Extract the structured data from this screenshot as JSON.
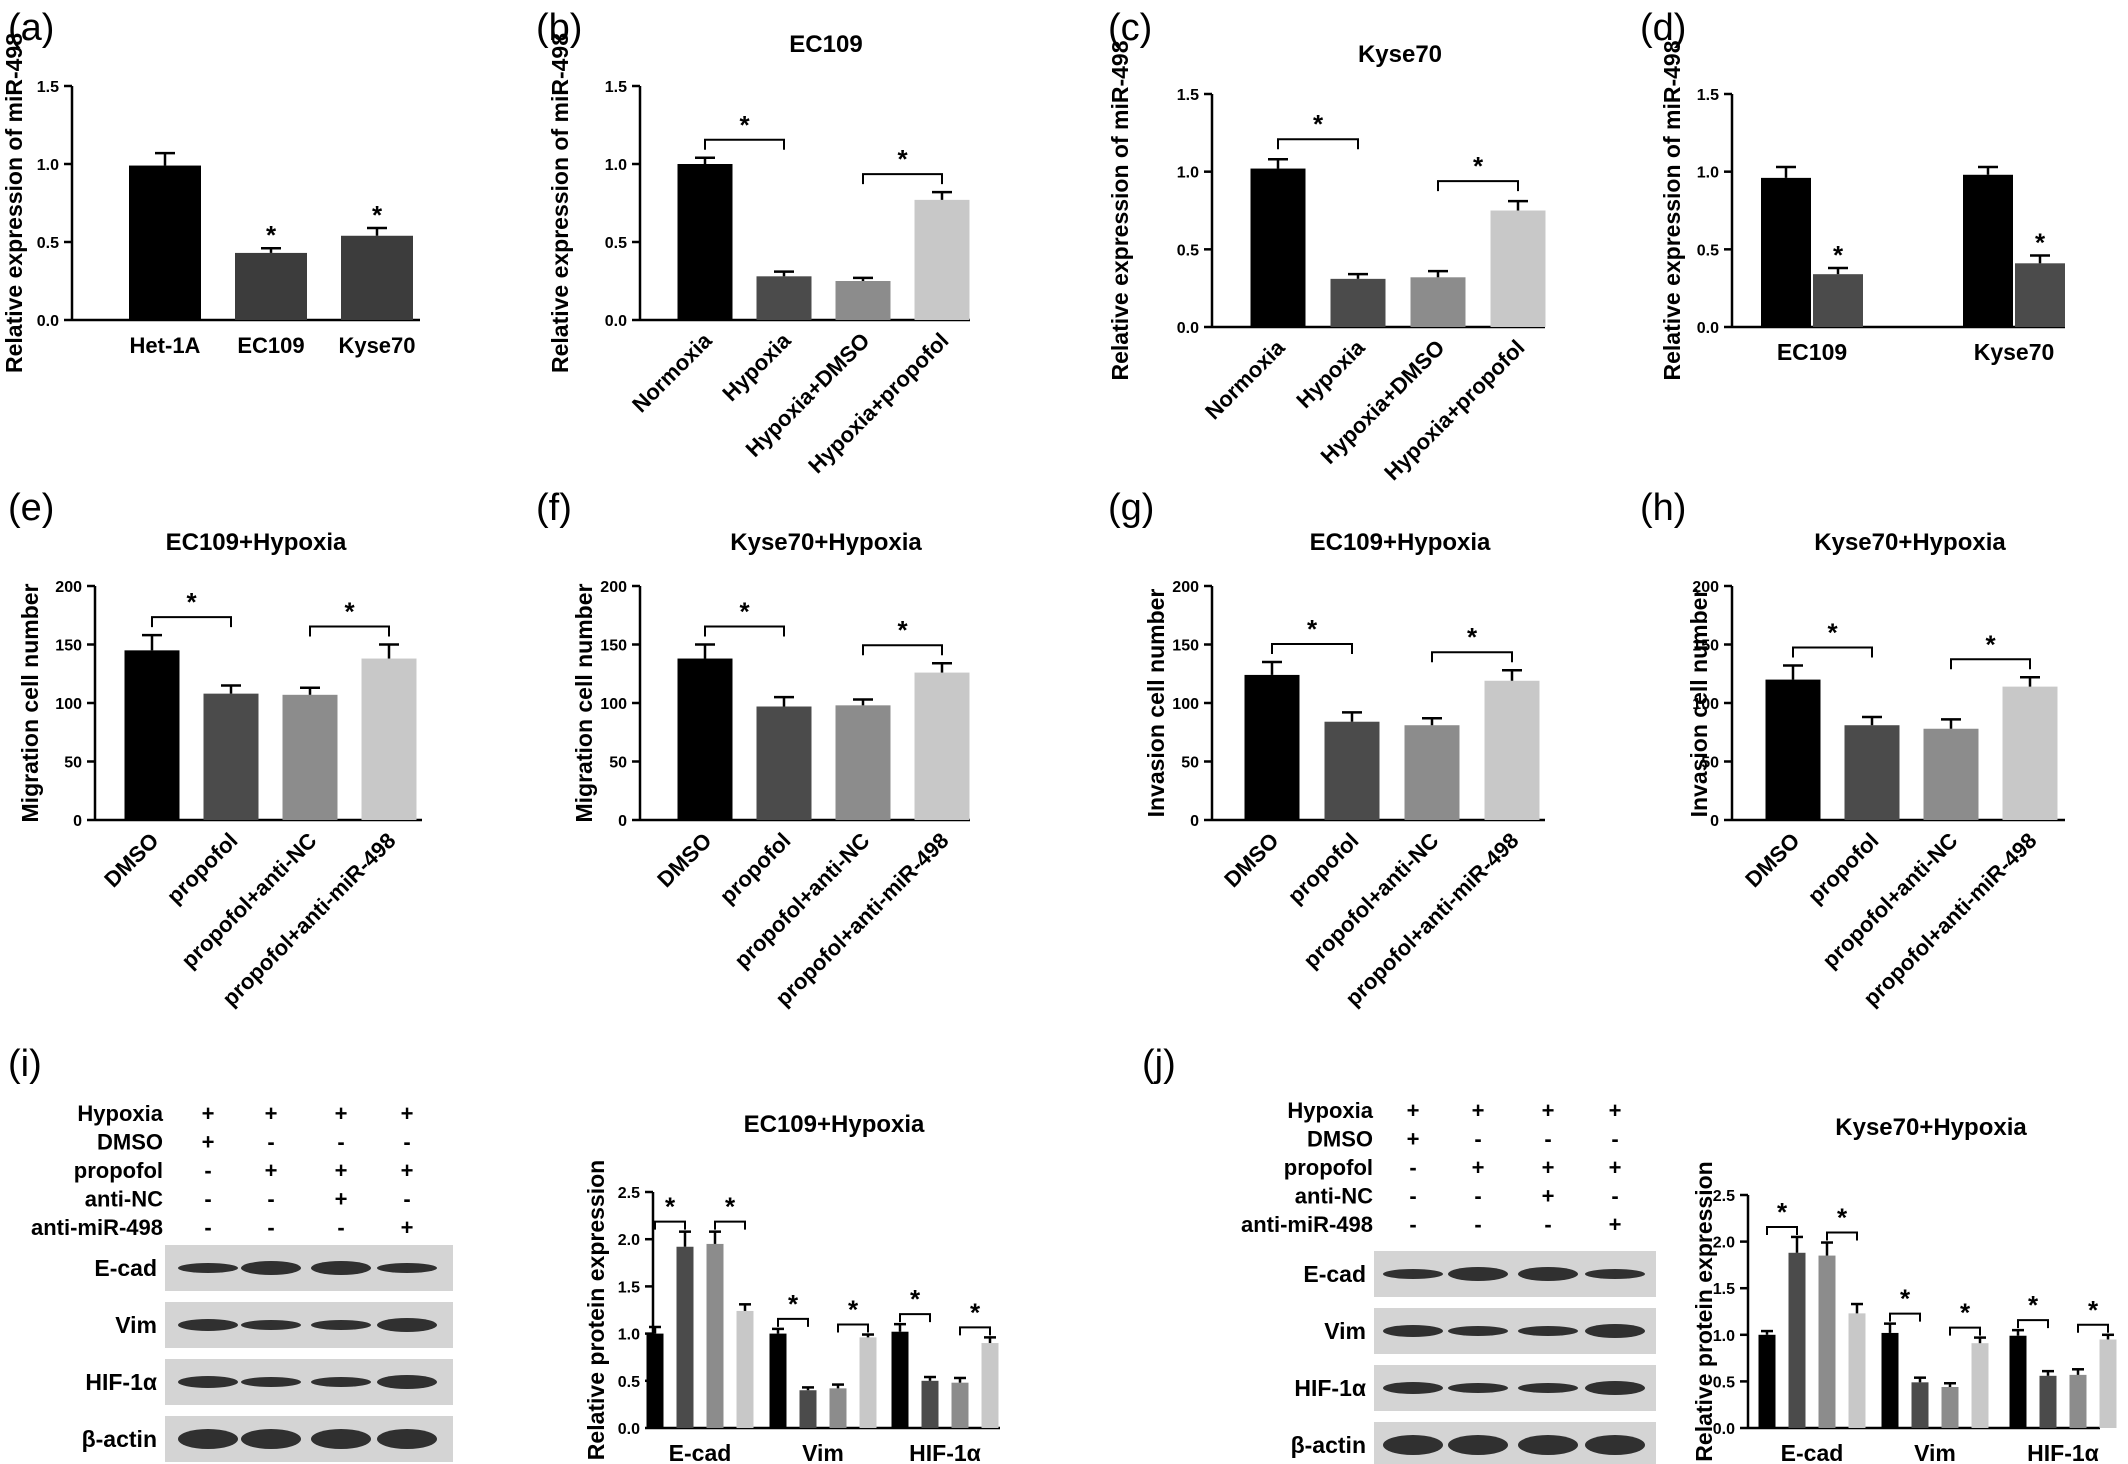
{
  "chart_data": [
    {
      "panel": "(a)",
      "type": "bar",
      "title": "",
      "ylabel": "Relative expression of miR-498",
      "ylim": [
        0,
        1.5
      ],
      "yticks": [
        "0.0",
        "0.5",
        "1.0",
        "1.5"
      ],
      "categories": [
        "Het-1A",
        "EC109",
        "Kyse70"
      ],
      "values": [
        0.99,
        0.43,
        0.54
      ],
      "errors": [
        0.08,
        0.03,
        0.05
      ],
      "stars": [
        "",
        "*",
        "*"
      ],
      "comparisons": []
    },
    {
      "panel": "(b)",
      "type": "bar",
      "title": "EC109",
      "ylabel": "Relative expression of miR-498",
      "ylim": [
        0,
        1.5
      ],
      "yticks": [
        "0.0",
        "0.5",
        "1.0",
        "1.5"
      ],
      "categories": [
        "Normoxia",
        "Hypoxia",
        "Hypoxia+DMSO",
        "Hypoxia+propofol"
      ],
      "values": [
        1.0,
        0.28,
        0.25,
        0.77
      ],
      "errors": [
        0.04,
        0.03,
        0.02,
        0.05
      ],
      "comparisons": [
        {
          "from": 0,
          "to": 1,
          "label": "*"
        },
        {
          "from": 2,
          "to": 3,
          "label": "*"
        }
      ]
    },
    {
      "panel": "(c)",
      "type": "bar",
      "title": "Kyse70",
      "ylabel": "Relative expression of miR-498",
      "ylim": [
        0,
        1.5
      ],
      "yticks": [
        "0.0",
        "0.5",
        "1.0",
        "1.5"
      ],
      "categories": [
        "Normoxia",
        "Hypoxia",
        "Hypoxia+DMSO",
        "Hypoxia+propofol"
      ],
      "values": [
        1.02,
        0.31,
        0.32,
        0.75
      ],
      "errors": [
        0.06,
        0.03,
        0.04,
        0.06
      ],
      "comparisons": [
        {
          "from": 0,
          "to": 1,
          "label": "*"
        },
        {
          "from": 2,
          "to": 3,
          "label": "*"
        }
      ]
    },
    {
      "panel": "(d)",
      "type": "bar",
      "title": "",
      "ylabel": "Relative expression of miR-498",
      "ylim": [
        0,
        1.5
      ],
      "yticks": [
        "0.0",
        "0.5",
        "1.0",
        "1.5"
      ],
      "groups": [
        "EC109",
        "Kyse70"
      ],
      "series": [
        {
          "values": [
            0.96,
            0.98
          ],
          "errors": [
            0.07,
            0.05
          ],
          "stars": [
            "",
            ""
          ]
        },
        {
          "values": [
            0.34,
            0.41
          ],
          "errors": [
            0.04,
            0.05
          ],
          "stars": [
            "*",
            "*"
          ]
        }
      ]
    },
    {
      "panel": "(e)",
      "type": "bar",
      "title": "EC109+Hypoxia",
      "ylabel": "Migration cell number",
      "ylim": [
        0,
        200
      ],
      "yticks": [
        "0",
        "50",
        "100",
        "150",
        "200"
      ],
      "categories": [
        "DMSO",
        "propofol",
        "propofol+anti-NC",
        "propofol+anti-miR-498"
      ],
      "values": [
        145,
        108,
        107,
        138
      ],
      "errors": [
        13,
        7,
        6,
        12
      ],
      "comparisons": [
        {
          "from": 0,
          "to": 1,
          "label": "*"
        },
        {
          "from": 2,
          "to": 3,
          "label": "*"
        }
      ]
    },
    {
      "panel": "(f)",
      "type": "bar",
      "title": "Kyse70+Hypoxia",
      "ylabel": "Migration cell number",
      "ylim": [
        0,
        200
      ],
      "yticks": [
        "0",
        "50",
        "100",
        "150",
        "200"
      ],
      "categories": [
        "DMSO",
        "propofol",
        "propofol+anti-NC",
        "propofol+anti-miR-498"
      ],
      "values": [
        138,
        97,
        98,
        126
      ],
      "errors": [
        12,
        8,
        5,
        8
      ],
      "comparisons": [
        {
          "from": 0,
          "to": 1,
          "label": "*"
        },
        {
          "from": 2,
          "to": 3,
          "label": "*"
        }
      ]
    },
    {
      "panel": "(g)",
      "type": "bar",
      "title": "EC109+Hypoxia",
      "ylabel": "Invasion cell number",
      "ylim": [
        0,
        200
      ],
      "yticks": [
        "0",
        "50",
        "100",
        "150",
        "200"
      ],
      "categories": [
        "DMSO",
        "propofol",
        "propofol+anti-NC",
        "propofol+anti-miR-498"
      ],
      "values": [
        124,
        84,
        81,
        119
      ],
      "errors": [
        11,
        8,
        6,
        9
      ],
      "comparisons": [
        {
          "from": 0,
          "to": 1,
          "label": "*"
        },
        {
          "from": 2,
          "to": 3,
          "label": "*"
        }
      ]
    },
    {
      "panel": "(h)",
      "type": "bar",
      "title": "Kyse70+Hypoxia",
      "ylabel": "Invasion cell number",
      "ylim": [
        0,
        200
      ],
      "yticks": [
        "0",
        "50",
        "100",
        "150",
        "200"
      ],
      "categories": [
        "DMSO",
        "propofol",
        "propofol+anti-NC",
        "propofol+anti-miR-498"
      ],
      "values": [
        120,
        81,
        78,
        114
      ],
      "errors": [
        12,
        7,
        8,
        8
      ],
      "comparisons": [
        {
          "from": 0,
          "to": 1,
          "label": "*"
        },
        {
          "from": 2,
          "to": 3,
          "label": "*"
        }
      ]
    },
    {
      "panel": "(i)",
      "type": "bar",
      "title": "EC109+Hypoxia",
      "ylabel": "Relative protein expression",
      "ylim": [
        0,
        2.5
      ],
      "yticks": [
        "0.0",
        "0.5",
        "1.0",
        "1.5",
        "2.0",
        "2.5"
      ],
      "groups": [
        "E-cad",
        "Vim",
        "HIF-1α"
      ],
      "series": [
        {
          "values": [
            1.0,
            1.0,
            1.02
          ],
          "errors": [
            0.07,
            0.05,
            0.08
          ]
        },
        {
          "values": [
            1.92,
            0.4,
            0.5
          ],
          "errors": [
            0.16,
            0.03,
            0.04
          ]
        },
        {
          "values": [
            1.95,
            0.42,
            0.48
          ],
          "errors": [
            0.13,
            0.04,
            0.05
          ]
        },
        {
          "values": [
            1.24,
            0.96,
            0.9
          ],
          "errors": [
            0.07,
            0.03,
            0.06
          ]
        }
      ],
      "comparisons": [
        {
          "from": 0,
          "to": 1,
          "label": "*"
        },
        {
          "from": 2,
          "to": 3,
          "label": "*"
        }
      ]
    },
    {
      "panel": "(j)",
      "type": "bar",
      "title": "Kyse70+Hypoxia",
      "ylabel": "Relative protein expression",
      "ylim": [
        0,
        2.5
      ],
      "yticks": [
        "0.0",
        "0.5",
        "1.0",
        "1.5",
        "2.0",
        "2.5"
      ],
      "groups": [
        "E-cad",
        "Vim",
        "HIF-1α"
      ],
      "series": [
        {
          "values": [
            1.0,
            1.02,
            0.99
          ],
          "errors": [
            0.04,
            0.1,
            0.06
          ]
        },
        {
          "values": [
            1.88,
            0.49,
            0.56
          ],
          "errors": [
            0.17,
            0.05,
            0.05
          ]
        },
        {
          "values": [
            1.85,
            0.44,
            0.57
          ],
          "errors": [
            0.14,
            0.04,
            0.06
          ]
        },
        {
          "values": [
            1.23,
            0.91,
            0.95
          ],
          "errors": [
            0.1,
            0.06,
            0.05
          ]
        }
      ],
      "comparisons": [
        {
          "from": 0,
          "to": 1,
          "label": "*"
        },
        {
          "from": 2,
          "to": 3,
          "label": "*"
        }
      ]
    }
  ],
  "panel_labels": [
    "(a)",
    "(b)",
    "(c)",
    "(d)",
    "(e)",
    "(f)",
    "(g)",
    "(h)",
    "(i)",
    "(j)"
  ],
  "western_blots": [
    {
      "panel": "(i)",
      "conditions": [
        {
          "name": "Hypoxia",
          "marks": [
            "+",
            "+",
            "+",
            "+"
          ]
        },
        {
          "name": "DMSO",
          "marks": [
            "+",
            "-",
            "-",
            "-"
          ]
        },
        {
          "name": "propofol",
          "marks": [
            "-",
            "+",
            "+",
            "+"
          ]
        },
        {
          "name": "anti-NC",
          "marks": [
            "-",
            "-",
            "+",
            "-"
          ]
        },
        {
          "name": "anti-miR-498",
          "marks": [
            "-",
            "-",
            "-",
            "+"
          ]
        }
      ],
      "proteins": [
        "E-cad",
        "Vim",
        "HIF-1α",
        "β-actin"
      ]
    },
    {
      "panel": "(j)",
      "conditions": [
        {
          "name": "Hypoxia",
          "marks": [
            "+",
            "+",
            "+",
            "+"
          ]
        },
        {
          "name": "DMSO",
          "marks": [
            "+",
            "-",
            "-",
            "-"
          ]
        },
        {
          "name": "propofol",
          "marks": [
            "-",
            "+",
            "+",
            "+"
          ]
        },
        {
          "name": "anti-NC",
          "marks": [
            "-",
            "-",
            "+",
            "-"
          ]
        },
        {
          "name": "anti-miR-498",
          "marks": [
            "-",
            "-",
            "-",
            "+"
          ]
        }
      ],
      "proteins": [
        "E-cad",
        "Vim",
        "HIF-1α",
        "β-actin"
      ]
    }
  ],
  "colors": {
    "bars4": [
      "#000000",
      "#4b4b4b",
      "#8c8c8c",
      "#c8c8c8"
    ],
    "bars3": [
      "#000000",
      "#3c3c3c",
      "#3c3c3c"
    ],
    "blot_bg": "#d4d4d4",
    "band": "#1e1e1e"
  }
}
